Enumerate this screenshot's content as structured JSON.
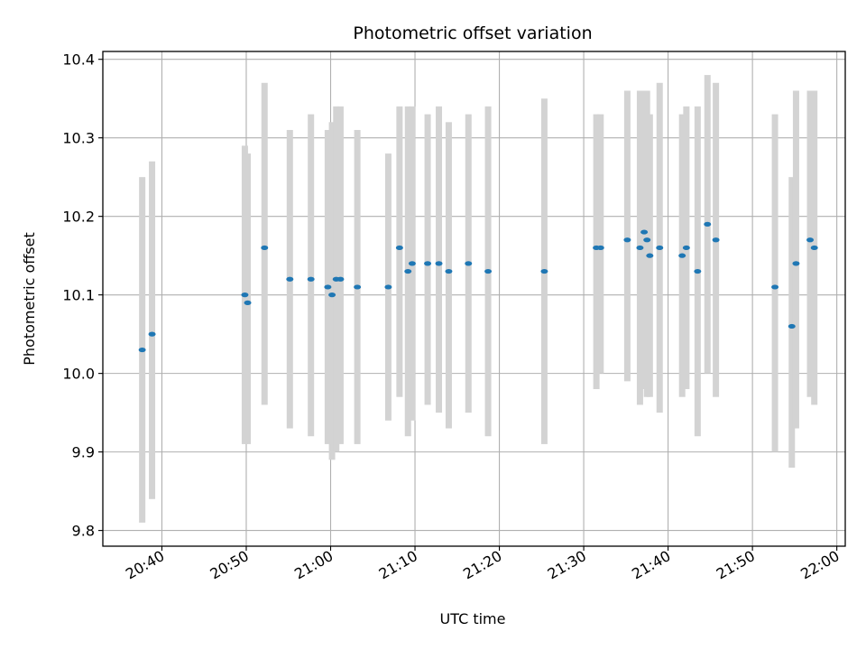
{
  "chart_data": {
    "type": "scatter",
    "title": "Photometric offset variation",
    "xlabel": "UTC time",
    "ylabel": "Photometric offset",
    "x_axis_type": "time",
    "xlim": [
      "20:33:00",
      "22:01:00"
    ],
    "ylim": [
      9.78,
      10.41
    ],
    "grid": true,
    "x_ticks": [
      "20:40",
      "20:50",
      "21:00",
      "21:10",
      "21:20",
      "21:30",
      "21:40",
      "21:50",
      "22:00"
    ],
    "y_ticks": [
      "9.8",
      "9.9",
      "10.0",
      "10.1",
      "10.2",
      "10.3",
      "10.4"
    ],
    "colors": {
      "marker": "#1f77b4",
      "errorbar": "#d3d3d3",
      "grid": "#b0b0b0"
    },
    "series": [
      {
        "points": [
          {
            "x": "20:37:40",
            "y": 10.03,
            "y_low": 9.81,
            "y_high": 10.25
          },
          {
            "x": "20:38:50",
            "y": 10.05,
            "y_low": 9.84,
            "y_high": 10.27
          },
          {
            "x": "20:49:50",
            "y": 10.1,
            "y_low": 9.91,
            "y_high": 10.29
          },
          {
            "x": "20:50:10",
            "y": 10.09,
            "y_low": 9.91,
            "y_high": 10.28
          },
          {
            "x": "20:52:10",
            "y": 10.16,
            "y_low": 9.96,
            "y_high": 10.37
          },
          {
            "x": "20:55:10",
            "y": 10.12,
            "y_low": 9.93,
            "y_high": 10.31
          },
          {
            "x": "20:57:40",
            "y": 10.12,
            "y_low": 9.92,
            "y_high": 10.33
          },
          {
            "x": "20:59:40",
            "y": 10.11,
            "y_low": 9.91,
            "y_high": 10.31
          },
          {
            "x": "21:00:10",
            "y": 10.1,
            "y_low": 9.89,
            "y_high": 10.32
          },
          {
            "x": "21:00:40",
            "y": 10.12,
            "y_low": 9.9,
            "y_high": 10.34
          },
          {
            "x": "21:01:10",
            "y": 10.12,
            "y_low": 9.91,
            "y_high": 10.34
          },
          {
            "x": "21:03:10",
            "y": 10.11,
            "y_low": 9.91,
            "y_high": 10.31
          },
          {
            "x": "21:06:50",
            "y": 10.11,
            "y_low": 9.94,
            "y_high": 10.28
          },
          {
            "x": "21:08:10",
            "y": 10.16,
            "y_low": 9.97,
            "y_high": 10.34
          },
          {
            "x": "21:09:10",
            "y": 10.13,
            "y_low": 9.92,
            "y_high": 10.34
          },
          {
            "x": "21:09:40",
            "y": 10.14,
            "y_low": 9.94,
            "y_high": 10.34
          },
          {
            "x": "21:11:30",
            "y": 10.14,
            "y_low": 9.96,
            "y_high": 10.33
          },
          {
            "x": "21:12:50",
            "y": 10.14,
            "y_low": 9.95,
            "y_high": 10.34
          },
          {
            "x": "21:14:00",
            "y": 10.13,
            "y_low": 9.93,
            "y_high": 10.32
          },
          {
            "x": "21:16:20",
            "y": 10.14,
            "y_low": 9.95,
            "y_high": 10.33
          },
          {
            "x": "21:18:40",
            "y": 10.13,
            "y_low": 9.92,
            "y_high": 10.34
          },
          {
            "x": "21:25:20",
            "y": 10.13,
            "y_low": 9.91,
            "y_high": 10.35
          },
          {
            "x": "21:31:30",
            "y": 10.16,
            "y_low": 9.98,
            "y_high": 10.33
          },
          {
            "x": "21:32:00",
            "y": 10.16,
            "y_low": 10.0,
            "y_high": 10.33
          },
          {
            "x": "21:35:10",
            "y": 10.17,
            "y_low": 9.99,
            "y_high": 10.36
          },
          {
            "x": "21:36:40",
            "y": 10.16,
            "y_low": 9.96,
            "y_high": 10.36
          },
          {
            "x": "21:37:10",
            "y": 10.18,
            "y_low": 9.98,
            "y_high": 10.36
          },
          {
            "x": "21:37:30",
            "y": 10.17,
            "y_low": 9.97,
            "y_high": 10.36
          },
          {
            "x": "21:37:50",
            "y": 10.15,
            "y_low": 9.97,
            "y_high": 10.33
          },
          {
            "x": "21:39:00",
            "y": 10.16,
            "y_low": 9.95,
            "y_high": 10.37
          },
          {
            "x": "21:41:40",
            "y": 10.15,
            "y_low": 9.97,
            "y_high": 10.33
          },
          {
            "x": "21:42:10",
            "y": 10.16,
            "y_low": 9.98,
            "y_high": 10.34
          },
          {
            "x": "21:43:30",
            "y": 10.13,
            "y_low": 9.92,
            "y_high": 10.34
          },
          {
            "x": "21:44:40",
            "y": 10.19,
            "y_low": 10.0,
            "y_high": 10.38
          },
          {
            "x": "21:45:40",
            "y": 10.17,
            "y_low": 9.97,
            "y_high": 10.37
          },
          {
            "x": "21:52:40",
            "y": 10.11,
            "y_low": 9.9,
            "y_high": 10.33
          },
          {
            "x": "21:54:40",
            "y": 10.06,
            "y_low": 9.88,
            "y_high": 10.25
          },
          {
            "x": "21:55:10",
            "y": 10.14,
            "y_low": 9.93,
            "y_high": 10.36
          },
          {
            "x": "21:56:50",
            "y": 10.17,
            "y_low": 9.97,
            "y_high": 10.36
          },
          {
            "x": "21:57:20",
            "y": 10.16,
            "y_low": 9.96,
            "y_high": 10.36
          }
        ]
      }
    ]
  }
}
